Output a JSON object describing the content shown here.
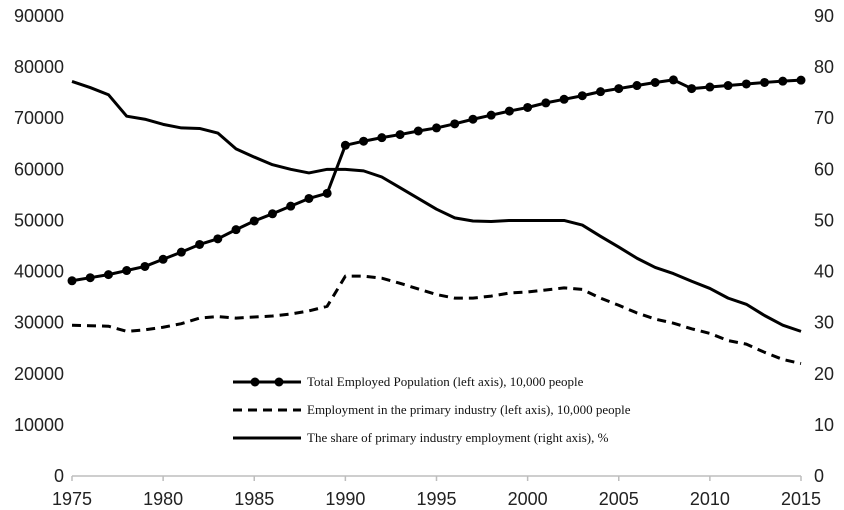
{
  "chart_data": {
    "type": "line",
    "x": [
      1975,
      1976,
      1977,
      1978,
      1979,
      1980,
      1981,
      1982,
      1983,
      1984,
      1985,
      1986,
      1987,
      1988,
      1989,
      1990,
      1991,
      1992,
      1993,
      1994,
      1995,
      1996,
      1997,
      1998,
      1999,
      2000,
      2001,
      2002,
      2003,
      2004,
      2005,
      2006,
      2007,
      2008,
      2009,
      2010,
      2011,
      2012,
      2013,
      2014,
      2015
    ],
    "x_ticks": [
      "1975",
      "1980",
      "1985",
      "1990",
      "1995",
      "2000",
      "2005",
      "2010",
      "2015"
    ],
    "xlim": [
      1975,
      2015
    ],
    "y_left_ticks": [
      "0",
      "10000",
      "20000",
      "30000",
      "40000",
      "50000",
      "60000",
      "70000",
      "80000",
      "90000"
    ],
    "y_left_lim": [
      0,
      90000
    ],
    "y_right_ticks": [
      "0",
      "10",
      "20",
      "30",
      "40",
      "50",
      "60",
      "70",
      "80",
      "90"
    ],
    "y_right_lim": [
      0,
      90
    ],
    "grid": false,
    "legend_position": "bottom-center",
    "series": [
      {
        "name": "Total Employed Population (left axis), 10,000 people",
        "axis": "left",
        "style": "solid-markers",
        "values": [
          38200,
          38800,
          39400,
          40200,
          41000,
          42400,
          43800,
          45300,
          46400,
          48200,
          49900,
          51300,
          52800,
          54300,
          55300,
          64700,
          65500,
          66200,
          66800,
          67500,
          68100,
          68900,
          69800,
          70600,
          71400,
          72100,
          73000,
          73700,
          74400,
          75200,
          75800,
          76400,
          76990,
          77500,
          75800,
          76100,
          76400,
          76700,
          77000,
          77250,
          77450
        ]
      },
      {
        "name": "Employment in the primary industry (left axis), 10,000 people",
        "axis": "left",
        "style": "dashed",
        "values": [
          29500,
          29400,
          29300,
          28300,
          28600,
          29100,
          29800,
          30900,
          31200,
          30900,
          31100,
          31300,
          31700,
          32300,
          33200,
          39100,
          39100,
          38700,
          37700,
          36600,
          35500,
          34800,
          34800,
          35200,
          35800,
          36000,
          36400,
          36800,
          36500,
          34800,
          33400,
          31900,
          30700,
          29900,
          28800,
          27900,
          26500,
          25800,
          24200,
          22800,
          22000
        ]
      },
      {
        "name": "The share of primary industry employment (right axis), %",
        "axis": "right",
        "style": "solid",
        "values": [
          77.2,
          76.0,
          74.6,
          70.4,
          69.8,
          68.8,
          68.1,
          68.0,
          67.1,
          64.0,
          62.4,
          60.9,
          60.0,
          59.3,
          60.0,
          60.0,
          59.7,
          58.5,
          56.4,
          54.3,
          52.2,
          50.5,
          49.9,
          49.8,
          50.0,
          50.0,
          50.0,
          50.0,
          49.1,
          46.9,
          44.8,
          42.6,
          40.8,
          39.6,
          38.1,
          36.7,
          34.8,
          33.6,
          31.4,
          29.5,
          28.3
        ]
      }
    ]
  }
}
